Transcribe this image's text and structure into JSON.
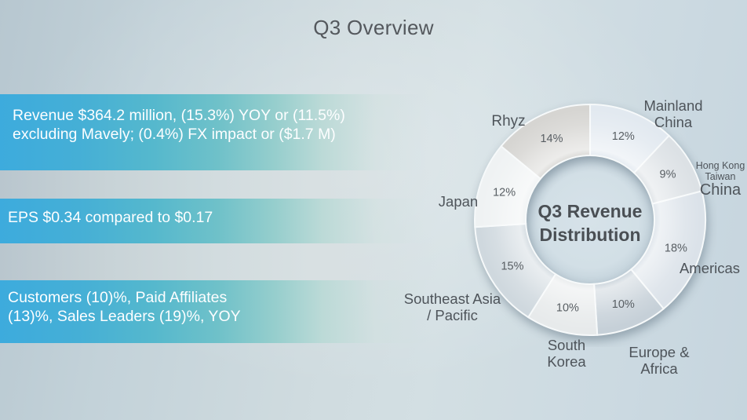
{
  "slide": {
    "title": "Q3 Overview",
    "bullets": [
      {
        "text": "Revenue $364.2 million, (15.3%) YOY or (11.5%) excluding Mavely; (0.4%) FX impact or ($1.7 M)"
      },
      {
        "text": "EPS $0.34 compared to $0.17"
      },
      {
        "text": "Customers (10)%, Paid Affiliates (13)%, Sales Leaders (19)%, YOY"
      }
    ]
  },
  "chart_data": {
    "type": "pie",
    "subtype": "donut",
    "title": "Q3 Revenue Distribution",
    "start_angle_deg": 0,
    "direction": "clockwise",
    "units": "percent",
    "legend_position": "around",
    "segments": [
      {
        "id": "mainland-china",
        "label": "Mainland China",
        "value": 12,
        "color": "#e2e9f0"
      },
      {
        "id": "hong-kong-taiwan-china",
        "label": "Hong Kong Taiwan China",
        "value": 9,
        "color": "#dce1e5"
      },
      {
        "id": "americas",
        "label": "Americas",
        "value": 18,
        "color": "#dbe2e9"
      },
      {
        "id": "europe-africa",
        "label": "Europe & Africa",
        "value": 10,
        "color": "#c6d0d8"
      },
      {
        "id": "south-korea",
        "label": "South Korea",
        "value": 10,
        "color": "#e7eaeb"
      },
      {
        "id": "southeast-asia-pacific",
        "label": "Southeast Asia / Pacific",
        "value": 15,
        "color": "#cfd8de"
      },
      {
        "id": "japan",
        "label": "Japan",
        "value": 12,
        "color": "#eff2f3"
      },
      {
        "id": "rhyz",
        "label": "Rhyz",
        "value": 14,
        "color": "#d6d5d2"
      }
    ],
    "callouts": {
      "rhyz": {
        "lines": [
          "Rhyz"
        ]
      },
      "mainland_china": {
        "lines": [
          "Mainland",
          "China"
        ]
      },
      "hong_kong_taiwan_china": {
        "small_lines": [
          "Hong Kong",
          "Taiwan"
        ],
        "big_line": "China"
      },
      "americas": {
        "lines": [
          "Americas"
        ]
      },
      "europe_africa": {
        "lines": [
          "Europe &",
          "Africa"
        ]
      },
      "south_korea": {
        "lines": [
          "South",
          "Korea"
        ]
      },
      "southeast_asia_pacific": {
        "lines": [
          "Southeast Asia",
          "/ Pacific"
        ]
      },
      "japan": {
        "lines": [
          "Japan"
        ]
      }
    }
  },
  "colors": {
    "bar_gradient_start": "#3dabdd",
    "bar_gradient_mid": "#6fc1c9",
    "stripe_color": "#ccd7da",
    "background": "#cbd9e0",
    "bar_text": "#ffffff",
    "heading_text": "#54585d",
    "label_text": "#4e545a"
  }
}
